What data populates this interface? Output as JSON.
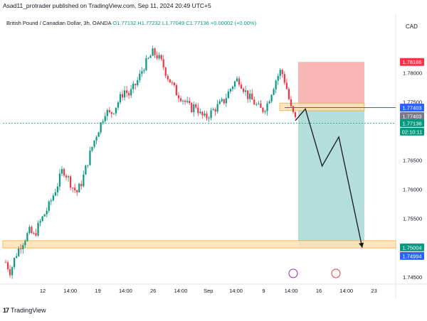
{
  "header": {
    "text": "Asad11_protrader published on TradingView.com, Sep 11, 2024 20:49 UTC+5"
  },
  "legend": {
    "symbol": "British Pound / Canadian Dollar, 3h, OANDA",
    "ohlc": "O1.77132 H1.77232 L1.77049 C1.77136 +0.00002 (+0.00%)"
  },
  "currency": "CAD",
  "footer": {
    "logo": "17",
    "brand": "TradingView"
  },
  "colors": {
    "up": "#089981",
    "down": "#f23645",
    "stop_zone": "#f7a9a7",
    "target_zone": "#a6d8d2",
    "support_zone": "#fce3b9",
    "support_border": "#f5a623",
    "price_line": "#089981",
    "entry_line": "#2962ff"
  },
  "price_tags": [
    {
      "label": "1.78186",
      "color": "#f23645"
    },
    {
      "label": "1.77403",
      "color": "#2962ff"
    },
    {
      "label": "1.77403",
      "color": "#787b86"
    },
    {
      "label": "1.77136",
      "color": "#089981"
    },
    {
      "label": "02:10:11",
      "color": "#089981"
    },
    {
      "label": "1.75004",
      "color": "#089981"
    },
    {
      "label": "1.74994",
      "color": "#2962ff"
    }
  ],
  "chart_data": {
    "type": "candlestick",
    "y_ticks": [
      "1.78000",
      "1.77500",
      "1.77000",
      "1.76500",
      "1.76000",
      "1.75500",
      "1.75000",
      "1.74500"
    ],
    "x_ticks": [
      "12",
      "14:00",
      "19",
      "14:00",
      "26",
      "14:00",
      "Sep",
      "14:00",
      "9",
      "14:00",
      "16",
      "14:00",
      "23"
    ],
    "ylim": [
      1.744,
      1.787
    ],
    "close_path": [
      1.7475,
      1.7458,
      1.7485,
      1.7502,
      1.7515,
      1.7528,
      1.752,
      1.754,
      1.7555,
      1.757,
      1.759,
      1.761,
      1.7635,
      1.7622,
      1.7605,
      1.7595,
      1.7612,
      1.764,
      1.7668,
      1.7692,
      1.7712,
      1.7735,
      1.7728,
      1.774,
      1.7755,
      1.777,
      1.7762,
      1.7775,
      1.779,
      1.781,
      1.7822,
      1.7835,
      1.7828,
      1.7815,
      1.7795,
      1.778,
      1.7765,
      1.7758,
      1.7748,
      1.7738,
      1.7745,
      1.7728,
      1.7722,
      1.773,
      1.7738,
      1.7745,
      1.7752,
      1.7768,
      1.7782,
      1.779,
      1.7775,
      1.776,
      1.7752,
      1.7742,
      1.7735,
      1.7745,
      1.7768,
      1.779,
      1.7805,
      1.778,
      1.774,
      1.772
    ],
    "zones": {
      "stop": [
        1.77403,
        1.78186
      ],
      "target": [
        1.75004,
        1.77403
      ],
      "support": [
        1.74994,
        1.7512
      ]
    },
    "projection": [
      {
        "bar": 0,
        "price": 1.7718
      },
      {
        "bar": 3,
        "price": 1.7738
      },
      {
        "bar": 8,
        "price": 1.764
      },
      {
        "bar": 13,
        "price": 1.769
      },
      {
        "bar": 20,
        "price": 1.75
      }
    ],
    "title": ""
  }
}
